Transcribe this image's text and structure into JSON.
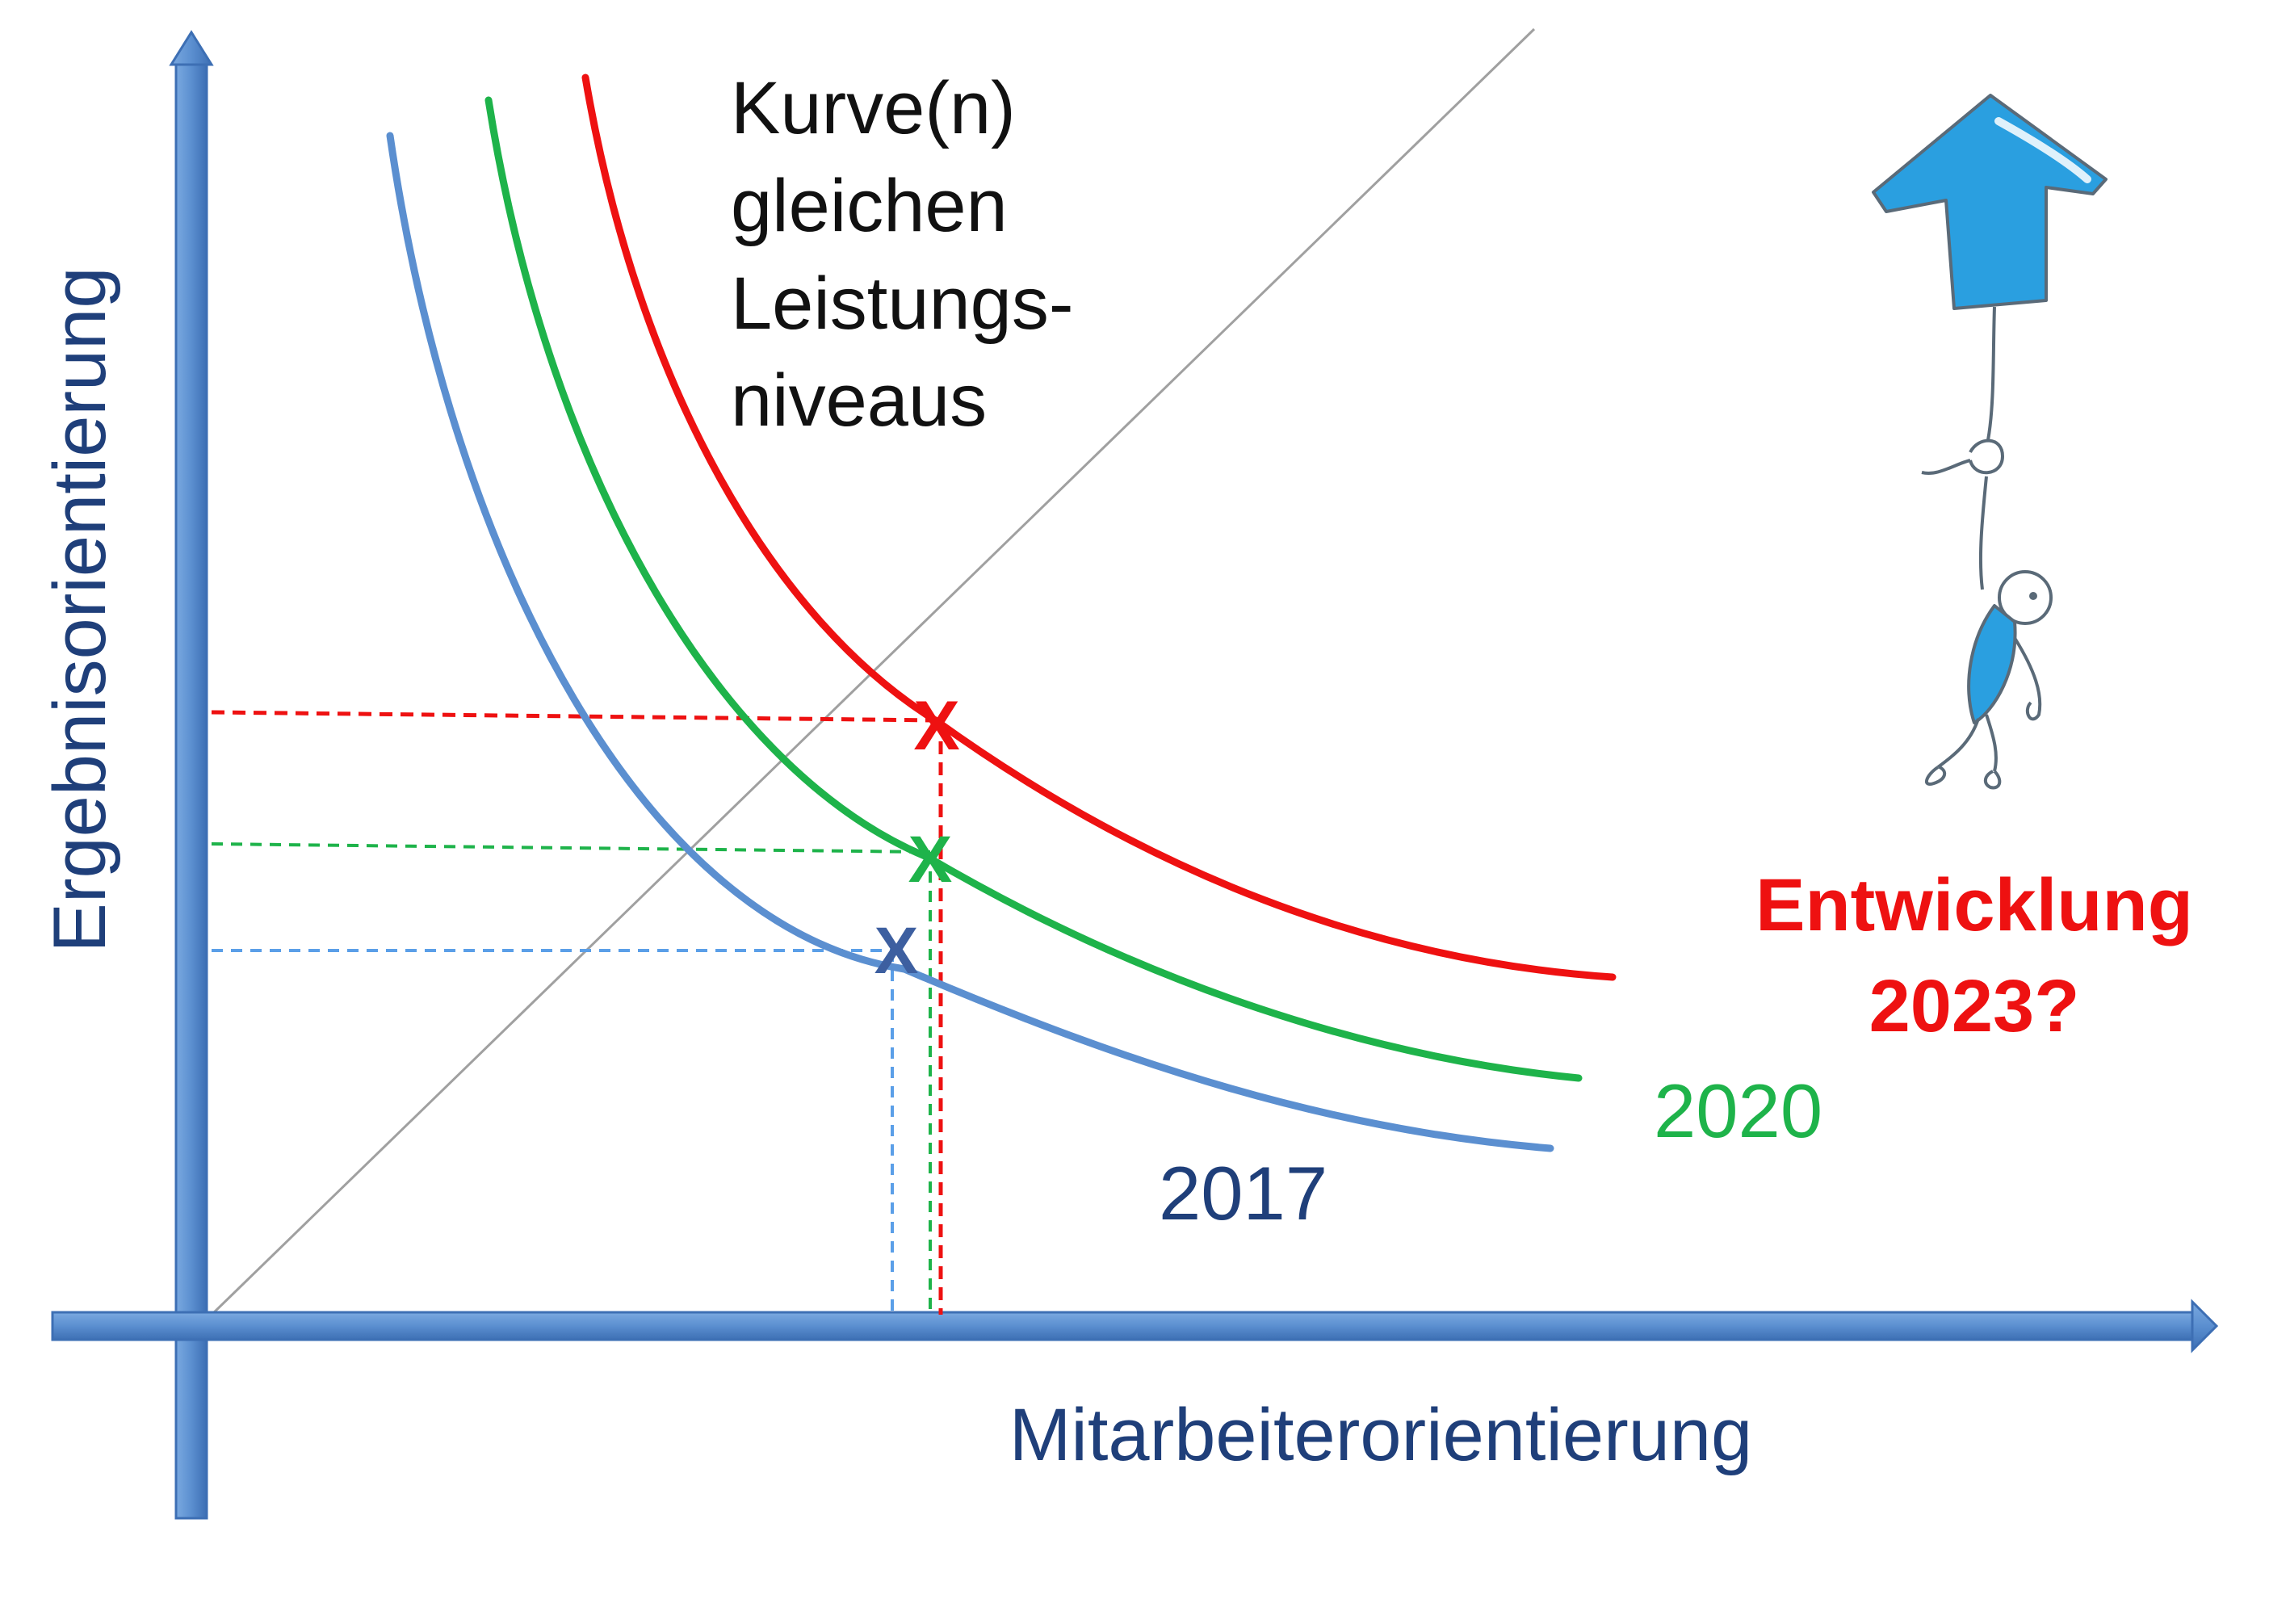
{
  "diagram": {
    "y_axis_label": "Ergebnisorientierung",
    "x_axis_label": "Mitarbeiterorientierung",
    "annotation_lines": [
      "Kurve(n)",
      "gleichen",
      "Leistungs-",
      "niveaus"
    ],
    "question_lines": [
      "Entwicklung",
      "2023?"
    ],
    "question_color": "#ee1111",
    "curves": [
      {
        "name": "curve-2017",
        "label": "2017",
        "color": "#5b8fd0",
        "label_color": "#1f3f7a",
        "marker": "X"
      },
      {
        "name": "curve-2020",
        "label": "2020",
        "color": "#1eb34a",
        "label_color": "#1eb34a",
        "marker": "X"
      },
      {
        "name": "curve-red",
        "label": "",
        "color": "#ee1111",
        "label_color": "#ee1111",
        "marker": "X"
      }
    ],
    "axis_color": "#5b8fd0",
    "diagonal_color": "#a0a0a0",
    "illustration": {
      "icon": "stick-figure-holding-blue-up-arrow-icon",
      "accent": "#2a9fe0"
    }
  }
}
